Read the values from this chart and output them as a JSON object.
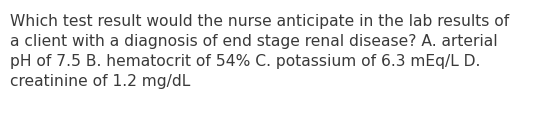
{
  "text": "Which test result would the nurse anticipate in the lab results of\na client with a diagnosis of end stage renal disease? A. arterial\npH of 7.5 B. hematocrit of 54% C. potassium of 6.3 mEq/L D.\ncreatinine of 1.2 mg/dL",
  "background_color": "#ffffff",
  "text_color": "#3a3a3a",
  "font_size": 11.2,
  "font_family": "DejaVu Sans"
}
